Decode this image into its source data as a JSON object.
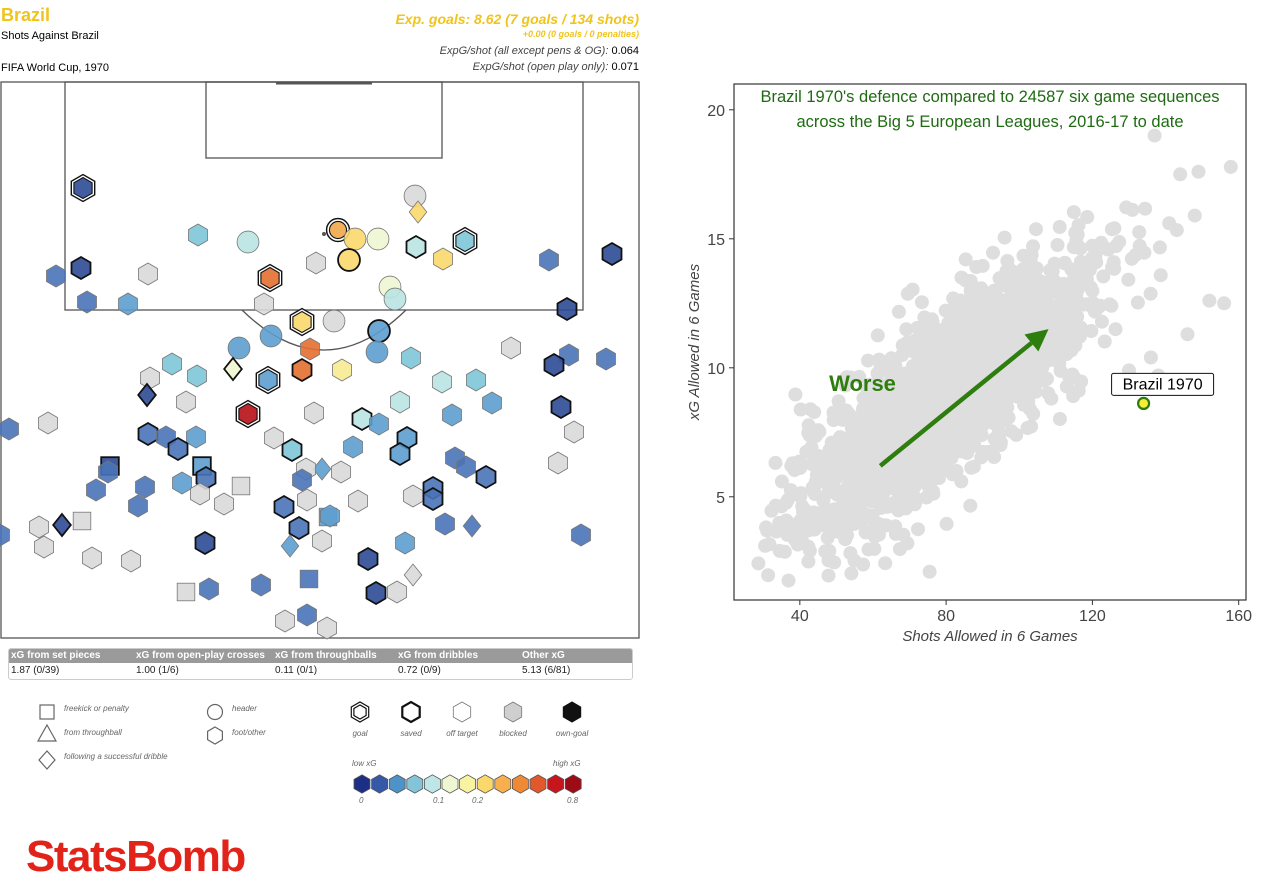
{
  "header": {
    "team": "Brazil",
    "subtitle": "Shots Against Brazil",
    "competition": "FIFA World Cup, 1970",
    "xg_total": "Exp. goals: 8.62 (7 goals / 134 shots)",
    "xg_pens": "+0.00 (0 goals / 0 penalties)",
    "xg_per_shot_label": "ExpG/shot (all except pens & OG):",
    "xg_per_shot_value": "0.064",
    "xg_open_label": "ExpG/shot (open play only):",
    "xg_open_value": "0.071"
  },
  "stats": {
    "headers": [
      "xG from set pieces",
      "xG from open-play crosses",
      "xG from throughballs",
      "xG from dribbles",
      "Other xG"
    ],
    "values": [
      "1.87 (0/39)",
      "1.00 (1/6)",
      "0.11 (0/1)",
      "0.72 (0/9)",
      "5.13 (6/81)"
    ]
  },
  "legend": {
    "shapes": [
      "freekick or penalty",
      "from throughball",
      "following a successful dribble",
      "header",
      "foot/other"
    ],
    "outcomes": [
      "goal",
      "saved",
      "off target",
      "blocked",
      "own-goal"
    ],
    "low": "low xG",
    "high": "high xG",
    "ticks": [
      "0",
      "0.1",
      "0.2",
      "0.8"
    ],
    "colors": [
      "#1d2f85",
      "#3559a8",
      "#4e93c8",
      "#84c4d8",
      "#bfe6e6",
      "#eef6d2",
      "#f8f3a0",
      "#fbd86b",
      "#f7b04d",
      "#ee8a36",
      "#e0582c",
      "#c4161c",
      "#9d0b16"
    ]
  },
  "brand": "StatsBomb",
  "chart_data": {
    "type": "scatter",
    "title_line1": "Brazil 1970's defence compared to 24587 six game sequences",
    "title_line2": "across the Big 5 European Leagues, 2016-17 to date",
    "xlabel": "Shots Allowed in 6 Games",
    "ylabel": "xG Allowed in 6 Games",
    "xlim": [
      22,
      162
    ],
    "ylim": [
      1,
      21
    ],
    "xticks": [
      "40",
      "80",
      "120",
      "160"
    ],
    "yticks": [
      "5",
      "10",
      "15",
      "20"
    ],
    "arrow_label": "Worse",
    "highlight": {
      "name": "Brazil 1970",
      "x": 134,
      "y": 8.62
    },
    "cloud_color": "#dedede",
    "highlight_color": "#2b7a0b"
  }
}
